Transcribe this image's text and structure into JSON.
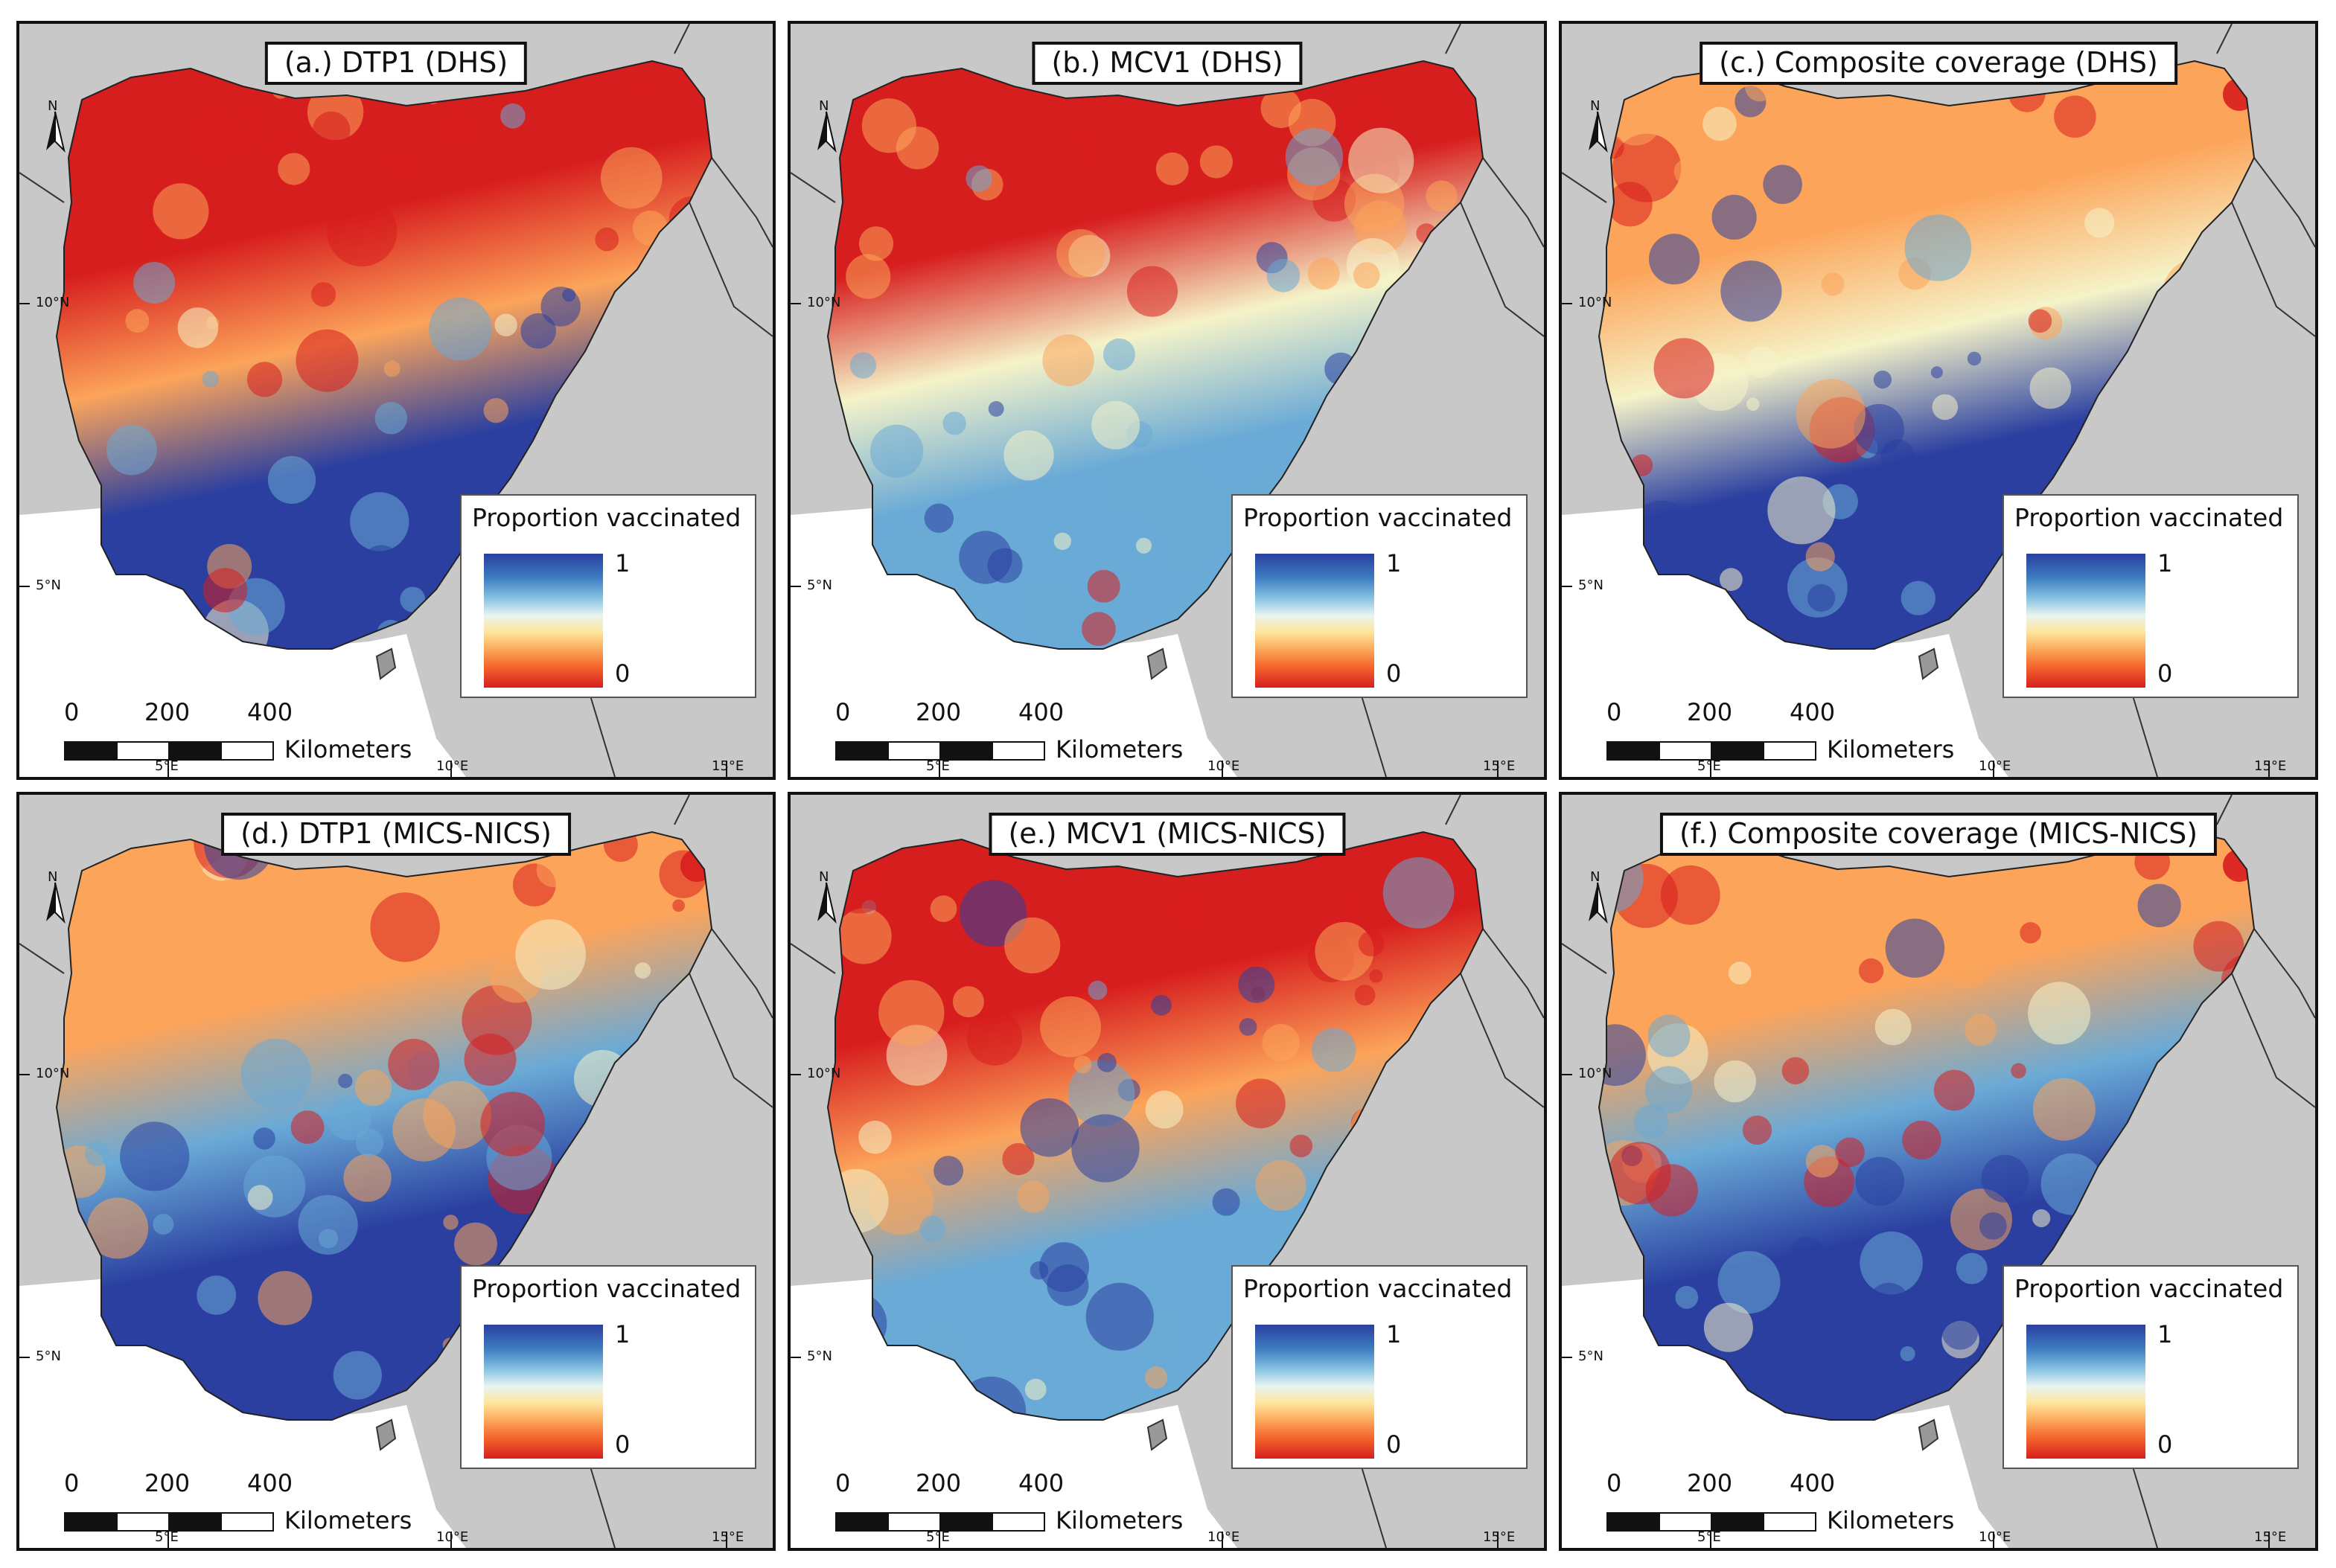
{
  "panels": [
    {
      "title": "(a.) DTP1 (DHS)",
      "pattern": "dtp1_dhs"
    },
    {
      "title": "(b.) MCV1 (DHS)",
      "pattern": "mcv1_dhs"
    },
    {
      "title": "(c.) Composite coverage (DHS)",
      "pattern": "comp_dhs"
    },
    {
      "title": "(d.) DTP1 (MICS-NICS)",
      "pattern": "dtp1_mics"
    },
    {
      "title": "(e.) MCV1 (MICS-NICS)",
      "pattern": "mcv1_mics"
    },
    {
      "title": "(f.) Composite coverage (MICS-NICS)",
      "pattern": "comp_mics"
    }
  ],
  "legend": {
    "title": "Proportion vaccinated",
    "max_label": "1",
    "min_label": "0"
  },
  "scale_bar": {
    "ticks": [
      "0",
      "200",
      "400"
    ],
    "unit": "Kilometers"
  },
  "graticule": {
    "lat": [
      "10°N",
      "5°N"
    ],
    "lon": [
      "5°E",
      "10°E",
      "15°E"
    ]
  },
  "north_label": "N",
  "colors": {
    "high": "#2a3fa0",
    "mid_high": "#6aaad6",
    "mid": "#f5f3c8",
    "mid_low": "#fca45a",
    "low": "#d71e1e",
    "background": "#c8c8c8",
    "sea": "#ffffff",
    "border": "#111111"
  }
}
